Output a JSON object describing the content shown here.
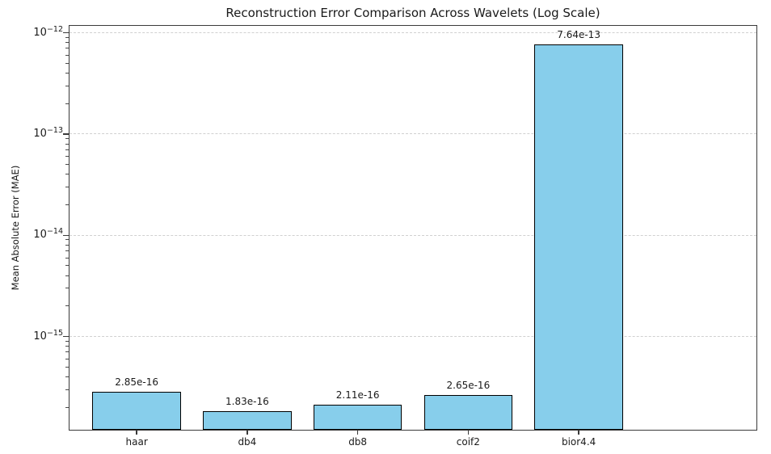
{
  "chart_data": {
    "type": "bar",
    "title": "Reconstruction Error Comparison Across Wavelets (Log Scale)",
    "xlabel": "",
    "ylabel": "Mean Absolute Error (MAE)",
    "yscale": "log",
    "categories": [
      "haar",
      "db4",
      "db8",
      "coif2",
      "bior4.4"
    ],
    "values": [
      2.85e-16,
      1.83e-16,
      2.11e-16,
      2.65e-16,
      7.64e-13
    ],
    "value_labels": [
      "2.85e-16",
      "1.83e-16",
      "2.11e-16",
      "2.65e-16",
      "7.64e-13"
    ],
    "ylim": [
      1.2e-16,
      1.17e-12
    ],
    "yticks": [
      {
        "value": 1e-12,
        "base": "10",
        "exponent": "−12"
      },
      {
        "value": 1e-13,
        "base": "10",
        "exponent": "−13"
      },
      {
        "value": 1e-14,
        "base": "10",
        "exponent": "−14"
      },
      {
        "value": 1e-15,
        "base": "10",
        "exponent": "−15"
      }
    ],
    "grid": {
      "axis": "y",
      "style": "dashed",
      "color": "#d0d0d0",
      "on": true
    },
    "legend": null,
    "colors": {
      "bar_fill": "#87CEEB",
      "bar_edge": "#000000",
      "spine": "#3a3a3a",
      "text": "#1a1a1a"
    }
  }
}
